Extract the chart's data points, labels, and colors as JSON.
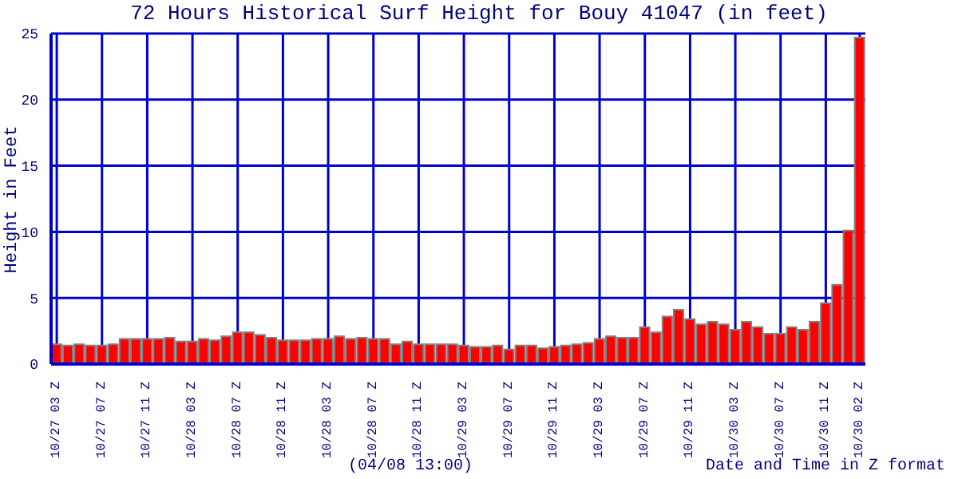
{
  "chart_data": {
    "type": "bar",
    "title": "72 Hours Historical Surf Height for Bouy 41047 (in feet)",
    "ylabel": "Height in Feet",
    "xlabel": "Date and Time in Z format",
    "annotations": [
      "(04/08 13:00)"
    ],
    "categories": [
      "10/27 03 Z",
      null,
      null,
      null,
      "10/27 07 Z",
      null,
      null,
      null,
      "10/27 11 Z",
      null,
      null,
      null,
      "10/28 03 Z",
      null,
      null,
      null,
      "10/28 07 Z",
      null,
      null,
      null,
      "10/28 11 Z",
      null,
      null,
      null,
      "10/28 03 Z",
      null,
      null,
      null,
      "10/28 07 Z",
      null,
      null,
      null,
      "10/28 11 Z",
      null,
      null,
      null,
      "10/29 03 Z",
      null,
      null,
      null,
      "10/29 07 Z",
      null,
      null,
      null,
      "10/29 11 Z",
      null,
      null,
      null,
      "10/29 03 Z",
      null,
      null,
      null,
      "10/29 07 Z",
      null,
      null,
      null,
      "10/29 11 Z",
      null,
      null,
      null,
      "10/30 03 Z",
      null,
      null,
      null,
      "10/30 07 Z",
      null,
      null,
      null,
      "10/30 11 Z",
      null,
      null,
      "10/30 02 Z"
    ],
    "values": [
      1.5,
      1.4,
      1.5,
      1.4,
      1.4,
      1.5,
      1.9,
      1.9,
      1.9,
      1.9,
      2.0,
      1.7,
      1.7,
      1.9,
      1.8,
      2.1,
      2.4,
      2.4,
      2.2,
      2.0,
      1.8,
      1.8,
      1.8,
      1.9,
      1.9,
      2.1,
      1.9,
      2.0,
      1.9,
      1.9,
      1.5,
      1.7,
      1.5,
      1.5,
      1.5,
      1.5,
      1.4,
      1.3,
      1.3,
      1.4,
      1.1,
      1.4,
      1.4,
      1.2,
      1.3,
      1.4,
      1.5,
      1.6,
      1.9,
      2.1,
      2.0,
      2.0,
      2.8,
      2.4,
      3.6,
      4.1,
      3.4,
      3.0,
      3.2,
      3.0,
      2.6,
      3.2,
      2.8,
      2.3,
      2.3,
      2.8,
      2.6,
      3.2,
      4.6,
      6.0,
      10.1,
      24.7
    ],
    "color": "#ff0000",
    "ylim": [
      0,
      25
    ],
    "yticks": [
      0,
      5,
      10,
      15,
      20,
      25
    ],
    "grid": true,
    "legend": false
  }
}
